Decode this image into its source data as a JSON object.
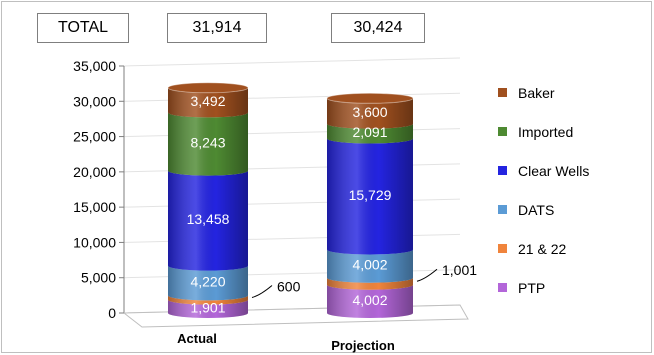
{
  "totals": {
    "label": "TOTAL",
    "values": [
      "31,914",
      "30,424"
    ]
  },
  "chart_data": {
    "type": "bar",
    "stacked": true,
    "style": "3d-cylinder",
    "categories": [
      "Actual",
      "Projection"
    ],
    "ylim": [
      0,
      35000
    ],
    "yticks": [
      0,
      5000,
      10000,
      15000,
      20000,
      25000,
      30000,
      35000
    ],
    "ytick_labels": [
      "0",
      "5,000",
      "10,000",
      "15,000",
      "20,000",
      "25,000",
      "30,000",
      "35,000"
    ],
    "grid": true,
    "legend_position": "right",
    "series": [
      {
        "name": "PTP",
        "values": [
          1901,
          4002
        ],
        "labels": [
          "1,901",
          "4,002"
        ],
        "color": "#b366d9"
      },
      {
        "name": "21 & 22",
        "values": [
          600,
          1001
        ],
        "labels": [
          "600",
          "1,001"
        ],
        "color": "#f0843c"
      },
      {
        "name": "DATS",
        "values": [
          4220,
          4002
        ],
        "labels": [
          "4,220",
          "4,002"
        ],
        "color": "#5b9bd5"
      },
      {
        "name": "Clear Wells",
        "values": [
          13458,
          15729
        ],
        "labels": [
          "13,458",
          "15,729"
        ],
        "color": "#2424e0"
      },
      {
        "name": "Imported",
        "values": [
          8243,
          2091
        ],
        "labels": [
          "8,243",
          "2,091"
        ],
        "color": "#4e8a32"
      },
      {
        "name": "Baker",
        "values": [
          3492,
          3600
        ],
        "labels": [
          "3,492",
          "3,600"
        ],
        "color": "#a0501f"
      }
    ]
  }
}
